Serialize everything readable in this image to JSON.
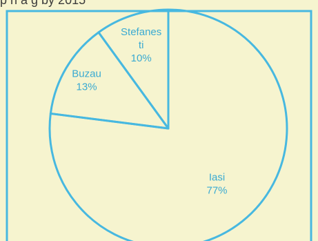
{
  "header": {
    "caption_fragment": "p  n    a    g                                                  by 2015"
  },
  "colors": {
    "outline": "#47b8e0",
    "label": "#3aaad2",
    "page": "#f6f4cf"
  },
  "chart_data": {
    "type": "pie",
    "title": "",
    "slices": [
      {
        "label_lines": [
          "Stefanes",
          "ti"
        ],
        "percent_text": "10%",
        "value": 10
      },
      {
        "label_lines": [
          "Buzau"
        ],
        "percent_text": "13%",
        "value": 13
      },
      {
        "label_lines": [
          "Iasi"
        ],
        "percent_text": "77%",
        "value": 77
      }
    ],
    "start_angle_deg": 0,
    "direction": "counterclockwise",
    "legend": "none"
  }
}
